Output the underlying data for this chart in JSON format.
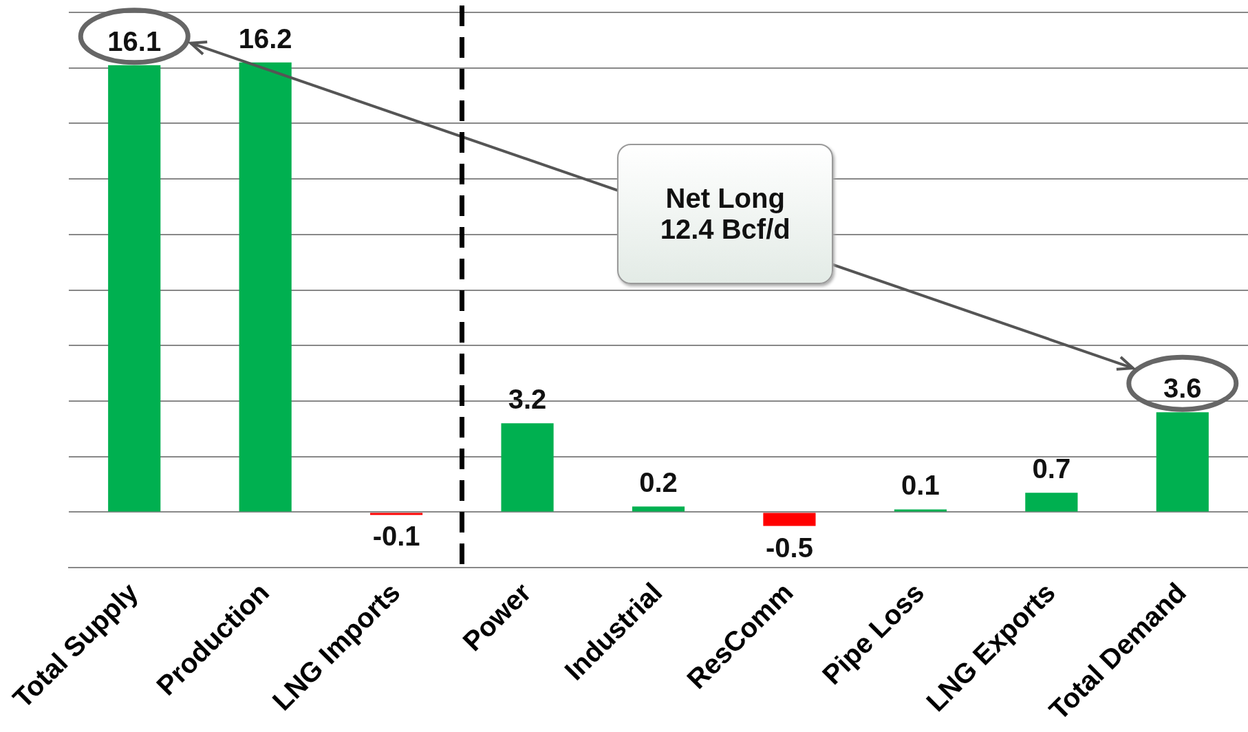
{
  "chart_data": {
    "type": "bar",
    "categories": [
      "Total Supply",
      "Production",
      "LNG Imports",
      "Power",
      "Industrial",
      "ResComm",
      "Pipe Loss",
      "LNG Exports",
      "Total Demand"
    ],
    "values": [
      16.1,
      16.2,
      -0.1,
      3.2,
      0.2,
      -0.5,
      0.1,
      0.7,
      3.6
    ],
    "colors": [
      "#00b050",
      "#00b050",
      "#ff0000",
      "#00b050",
      "#00b050",
      "#ff0000",
      "#00b050",
      "#00b050",
      "#00b050"
    ],
    "ylim": [
      -2,
      18
    ],
    "yticks": [
      {
        "value": -2,
        "label": null
      },
      {
        "value": 0,
        "label": null
      },
      {
        "value": 2,
        "label": null
      },
      {
        "value": 4,
        "label": null
      },
      {
        "value": 6,
        "label": null
      },
      {
        "value": 8,
        "label": null
      },
      {
        "value": 10,
        "label": null
      },
      {
        "value": 12,
        "label": null
      },
      {
        "value": 14,
        "label": null
      },
      {
        "value": 16,
        "label": null
      },
      {
        "value": 18,
        "label": null
      }
    ],
    "tick_labels": "x",
    "grid": "y",
    "data_labels": true,
    "annotations": [
      "Net Long\n12.4 Bcf/d"
    ]
  }
}
